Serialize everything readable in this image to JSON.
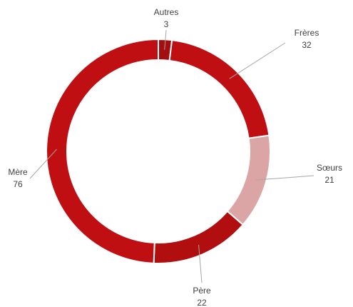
{
  "chart_data": {
    "type": "donut",
    "categories": [
      "Autres",
      "Frères",
      "Sœurs",
      "Père",
      "Mère"
    ],
    "values": [
      3,
      32,
      21,
      22,
      76
    ],
    "colors": [
      "#a30f10",
      "#c00f12",
      "#dba5a5",
      "#b00e0f",
      "#c00f12"
    ]
  }
}
